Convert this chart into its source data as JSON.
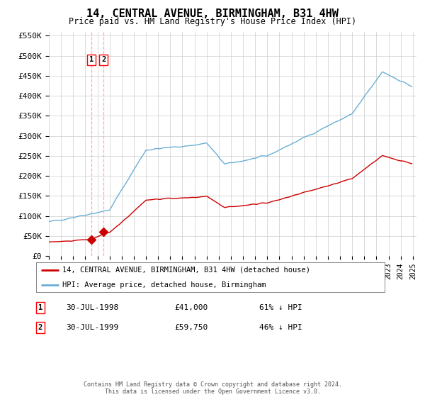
{
  "title": "14, CENTRAL AVENUE, BIRMINGHAM, B31 4HW",
  "subtitle": "Price paid vs. HM Land Registry's House Price Index (HPI)",
  "legend_line1": "14, CENTRAL AVENUE, BIRMINGHAM, B31 4HW (detached house)",
  "legend_line2": "HPI: Average price, detached house, Birmingham",
  "sale1_date": "30-JUL-1998",
  "sale1_price": 41000,
  "sale1_label": "1",
  "sale1_pct": "61% ↓ HPI",
  "sale2_date": "30-JUL-1999",
  "sale2_price": 59750,
  "sale2_label": "2",
  "sale2_pct": "46% ↓ HPI",
  "footer": "Contains HM Land Registry data © Crown copyright and database right 2024.\nThis data is licensed under the Open Government Licence v3.0.",
  "hpi_color": "#6baed6",
  "price_color": "#cc0000",
  "marker_color": "#cc0000",
  "vline_color": "#ffaaaa",
  "grid_color": "#cccccc",
  "background_color": "#ffffff",
  "ylim": [
    0,
    560000
  ],
  "yticks": [
    0,
    50000,
    100000,
    150000,
    200000,
    250000,
    300000,
    350000,
    400000,
    450000,
    500000,
    550000
  ],
  "ytick_labels": [
    "£0",
    "£50K",
    "£100K",
    "£150K",
    "£200K",
    "£250K",
    "£300K",
    "£350K",
    "£400K",
    "£450K",
    "£500K",
    "£550K"
  ]
}
